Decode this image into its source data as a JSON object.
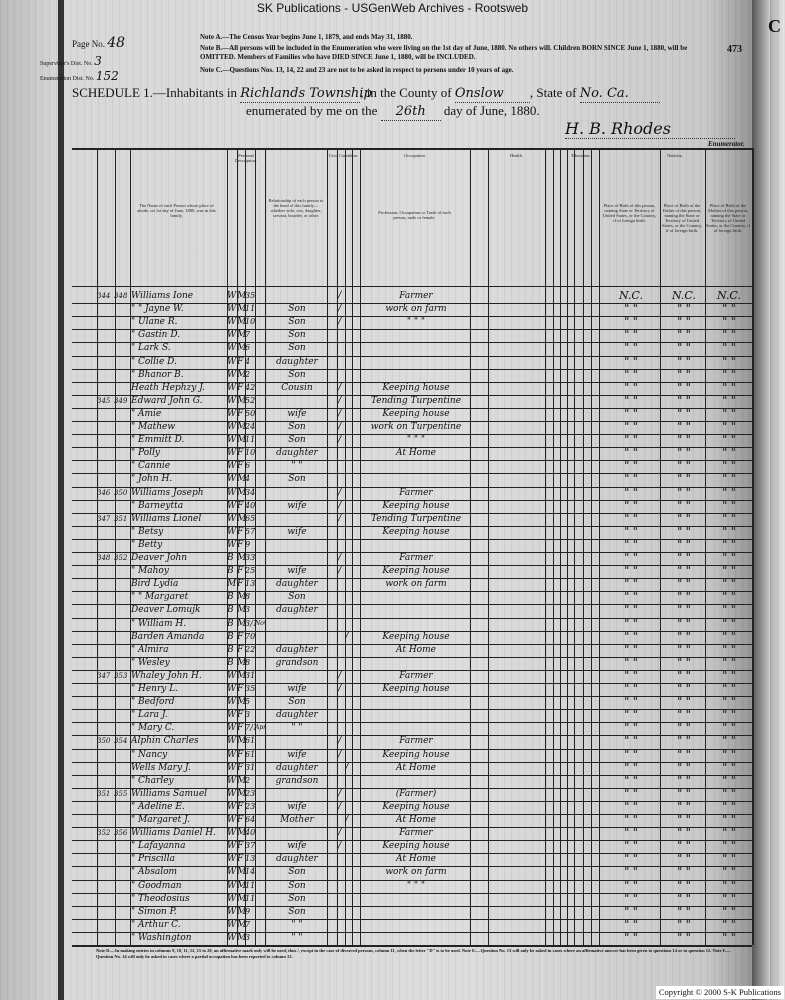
{
  "watermark": "SK Publications - USGenWeb Archives - Rootsweb",
  "header": {
    "page_no_label": "Page No.",
    "page_no": "48",
    "supervisor_label": "Supervisor's Dist. No.",
    "supervisor_no": "3",
    "enumeration_label": "Enumeration Dist. No.",
    "enumeration_no": "152",
    "stamp_number": "473",
    "corner_letter": "C",
    "note_a": "Note A.—The Census Year begins June 1, 1879, and ends May 31, 1880.",
    "note_b": "Note B.—All persons will be included in the Enumeration who were living on the 1st day of June, 1880. No others will. Children BORN SINCE June 1, 1880, will be OMITTED. Members of Families who have DIED SINCE June 1, 1880, will be INCLUDED.",
    "note_c": "Note C.—Questions Nos. 13, 14, 22 and 23 are not to be asked in respect to persons under 10 years of age.",
    "schedule_label": "SCHEDULE 1.—Inhabitants in",
    "township": "Richlands Township",
    "county_label": ", in the County of",
    "county": "Onslow",
    "state_label": ", State of",
    "state": "No. Ca.",
    "enumerated_label": "enumerated by me on the",
    "day": "26th",
    "date_suffix": "day of June, 1880.",
    "enumerator_signature": "H. B. Rhodes",
    "enumerator_label": "Enumerator."
  },
  "column_headers": {
    "personal": "Personal Description.",
    "civil": "Civil Condition.",
    "occupation": "Occupation.",
    "health": "Health.",
    "education": "Education.",
    "nativity": "Nativity.",
    "name": "The Name of each Person whose place of abode, on 1st day of June, 1880, was in this family.",
    "relationship": "Relationship of each person to the head of this family—whether wife, son, daughter, servant, boarder, or other.",
    "profession": "Profession, Occupation or Trade of each person, male or female.",
    "birth_self": "Place of Birth of this person, naming State or Territory of United States, or the Country, if of foreign birth.",
    "birth_father": "Place of Birth of the Father of this person, naming the State or Territory of United States, or the Country, if of foreign birth.",
    "birth_mother": "Place of Birth of the Mother of this person, naming the State or Territory of United States, or the Country, if of foreign birth."
  },
  "rows": [
    {
      "dw": "344",
      "fam": "348",
      "name": "Williams Ione",
      "c": "W",
      "s": "M",
      "a": "35",
      "rel": "",
      "m": "/",
      "occ": "Farmer",
      "bp": "N.C.",
      "fb": "N.C.",
      "mb": "N.C."
    },
    {
      "dw": "",
      "fam": "",
      "name": "\" \" Jayne W.",
      "c": "W",
      "s": "M",
      "a": "11",
      "rel": "Son",
      "m": "/",
      "occ": "work on farm",
      "bp": "\"  \"",
      "fb": "\"  \"",
      "mb": "\"  \""
    },
    {
      "dw": "",
      "fam": "",
      "name": "\" Ulane R.",
      "c": "W",
      "s": "M",
      "a": "10",
      "rel": "Son",
      "m": "/",
      "occ": "\"  \"  \"",
      "bp": "\"  \"",
      "fb": "\"  \"",
      "mb": "\"  \""
    },
    {
      "dw": "",
      "fam": "",
      "name": "\" Gastin D.",
      "c": "W",
      "s": "M",
      "a": "7",
      "rel": "Son",
      "m": "",
      "occ": "",
      "bp": "\"  \"",
      "fb": "\"  \"",
      "mb": "\"  \""
    },
    {
      "dw": "",
      "fam": "",
      "name": "\" Lark S.",
      "c": "W",
      "s": "M",
      "a": "6",
      "rel": "Son",
      "m": "",
      "occ": "",
      "bp": "\"  \"",
      "fb": "\"  \"",
      "mb": "\"  \""
    },
    {
      "dw": "",
      "fam": "",
      "name": "\" Collie D.",
      "c": "W",
      "s": "F",
      "a": "4",
      "rel": "daughter",
      "m": "",
      "occ": "",
      "bp": "\"  \"",
      "fb": "\"  \"",
      "mb": "\"  \""
    },
    {
      "dw": "",
      "fam": "",
      "name": "\" Bhanor B.",
      "c": "W",
      "s": "M",
      "a": "2",
      "rel": "Son",
      "m": "",
      "occ": "",
      "bp": "\"  \"",
      "fb": "\"  \"",
      "mb": "\"  \""
    },
    {
      "dw": "",
      "fam": "",
      "name": "Heath Hephzy J.",
      "c": "W",
      "s": "F",
      "a": "42",
      "rel": "Cousin",
      "m": "/",
      "occ": "Keeping house",
      "bp": "\"  \"",
      "fb": "\"  \"",
      "mb": "\"  \""
    },
    {
      "dw": "345",
      "fam": "349",
      "name": "Edward John G.",
      "c": "W",
      "s": "M",
      "a": "52",
      "rel": "",
      "m": "/",
      "occ": "Tending Turpentine",
      "bp": "\"  \"",
      "fb": "\"  \"",
      "mb": "\"  \""
    },
    {
      "dw": "",
      "fam": "",
      "name": "\" Amie",
      "c": "W",
      "s": "F",
      "a": "50",
      "rel": "wife",
      "m": "/",
      "occ": "Keeping house",
      "bp": "\"  \"",
      "fb": "\"  \"",
      "mb": "\"  \""
    },
    {
      "dw": "",
      "fam": "",
      "name": "\" Mathew",
      "c": "W",
      "s": "M",
      "a": "24",
      "rel": "Son",
      "m": "/",
      "occ": "work on Turpentine",
      "bp": "\"  \"",
      "fb": "\"  \"",
      "mb": "\"  \""
    },
    {
      "dw": "",
      "fam": "",
      "name": "\" Emmitt D.",
      "c": "W",
      "s": "M",
      "a": "11",
      "rel": "Son",
      "m": "/",
      "occ": "\"  \"  \"",
      "bp": "\"  \"",
      "fb": "\"  \"",
      "mb": "\"  \""
    },
    {
      "dw": "",
      "fam": "",
      "name": "\" Polly",
      "c": "W",
      "s": "F",
      "a": "10",
      "rel": "daughter",
      "m": "",
      "occ": "At Home",
      "bp": "\"  \"",
      "fb": "\"  \"",
      "mb": "\"  \""
    },
    {
      "dw": "",
      "fam": "",
      "name": "\" Cannie",
      "c": "W",
      "s": "F",
      "a": "6",
      "rel": "\" \"",
      "m": "",
      "occ": "",
      "bp": "\"  \"",
      "fb": "\"  \"",
      "mb": "\"  \""
    },
    {
      "dw": "",
      "fam": "",
      "name": "\" John H.",
      "c": "W",
      "s": "M",
      "a": "4",
      "rel": "Son",
      "m": "",
      "occ": "",
      "bp": "\"  \"",
      "fb": "\"  \"",
      "mb": "\"  \""
    },
    {
      "dw": "346",
      "fam": "350",
      "name": "Williams Joseph",
      "c": "W",
      "s": "M",
      "a": "34",
      "rel": "",
      "m": "/",
      "occ": "Farmer",
      "bp": "\"  \"",
      "fb": "\"  \"",
      "mb": "\"  \""
    },
    {
      "dw": "",
      "fam": "",
      "name": "\" Barneytta",
      "c": "W",
      "s": "F",
      "a": "40",
      "rel": "wife",
      "m": "/",
      "occ": "Keeping house",
      "bp": "\"  \"",
      "fb": "\"  \"",
      "mb": "\"  \""
    },
    {
      "dw": "347",
      "fam": "351",
      "name": "Williams Lionel",
      "c": "W",
      "s": "M",
      "a": "65",
      "rel": "",
      "m": "/",
      "occ": "Tending Turpentine",
      "bp": "\"  \"",
      "fb": "\"  \"",
      "mb": "\"  \""
    },
    {
      "dw": "",
      "fam": "",
      "name": "\" Betsy",
      "c": "W",
      "s": "F",
      "a": "57",
      "rel": "wife",
      "m": "",
      "occ": "Keeping house",
      "bp": "\"  \"",
      "fb": "\"  \"",
      "mb": "\"  \""
    },
    {
      "dw": "",
      "fam": "",
      "name": "\" Betty",
      "c": "W",
      "s": "F",
      "a": "9",
      "rel": "",
      "m": "",
      "occ": "",
      "bp": "\"  \"",
      "fb": "\"  \"",
      "mb": "\"  \""
    },
    {
      "dw": "348",
      "fam": "352",
      "name": "Deaver John",
      "c": "B",
      "s": "M",
      "a": "33",
      "rel": "",
      "m": "/",
      "occ": "Farmer",
      "bp": "\"  \"",
      "fb": "\"  \"",
      "mb": "\"  \""
    },
    {
      "dw": "",
      "fam": "",
      "name": "\" Mahoy",
      "c": "B",
      "s": "F",
      "a": "25",
      "rel": "wife",
      "m": "/",
      "occ": "Keeping house",
      "bp": "\"  \"",
      "fb": "\"  \"",
      "mb": "\"  \""
    },
    {
      "dw": "",
      "fam": "",
      "name": "Bird Lydia",
      "c": "M",
      "s": "F",
      "a": "13",
      "rel": "daughter",
      "m": "",
      "occ": "work on farm",
      "bp": "\"  \"",
      "fb": "\"  \"",
      "mb": "\"  \""
    },
    {
      "dw": "",
      "fam": "",
      "name": "\" \" Margaret",
      "c": "B",
      "s": "M",
      "a": "8",
      "rel": "Son",
      "m": "",
      "occ": "",
      "bp": "\"  \"",
      "fb": "\"  \"",
      "mb": "\"  \""
    },
    {
      "dw": "",
      "fam": "",
      "name": "Deaver Lomujk",
      "c": "B",
      "s": "M",
      "a": "3",
      "rel": "daughter",
      "m": "",
      "occ": "",
      "bp": "\"  \"",
      "fb": "\"  \"",
      "mb": "\"  \""
    },
    {
      "dw": "",
      "fam": "",
      "name": "\" William H.",
      "c": "B",
      "s": "M",
      "a": "3/12",
      "rel": "",
      "mo": "Nov",
      "m": "",
      "occ": "",
      "bp": "\"  \"",
      "fb": "\"  \"",
      "mb": "\"  \""
    },
    {
      "dw": "",
      "fam": "",
      "name": "Barden Amanda",
      "c": "B",
      "s": "F",
      "a": "70",
      "rel": "",
      "m": "",
      "w": "/",
      "occ": "Keeping house",
      "bp": "\"  \"",
      "fb": "\"  \"",
      "mb": "\"  \""
    },
    {
      "dw": "",
      "fam": "",
      "name": "\" Almira",
      "c": "B",
      "s": "F",
      "a": "22",
      "rel": "daughter",
      "m": "",
      "occ": "At Home",
      "bp": "\"  \"",
      "fb": "\"  \"",
      "mb": "\"  \""
    },
    {
      "dw": "",
      "fam": "",
      "name": "\" Wesley",
      "c": "B",
      "s": "M",
      "a": "8",
      "rel": "grandson",
      "m": "",
      "occ": "",
      "bp": "\"  \"",
      "fb": "\"  \"",
      "mb": "\"  \""
    },
    {
      "dw": "347",
      "fam": "353",
      "name": "Whaley John H.",
      "c": "W",
      "s": "M",
      "a": "31",
      "rel": "",
      "m": "/",
      "occ": "Farmer",
      "bp": "\"  \"",
      "fb": "\"  \"",
      "mb": "\"  \""
    },
    {
      "dw": "",
      "fam": "",
      "name": "\" Henry L.",
      "c": "W",
      "s": "F",
      "a": "35",
      "rel": "wife",
      "m": "/",
      "occ": "Keeping house",
      "bp": "\"  \"",
      "fb": "\"  \"",
      "mb": "\"  \""
    },
    {
      "dw": "",
      "fam": "",
      "name": "\" Bedford",
      "c": "W",
      "s": "M",
      "a": "5",
      "rel": "Son",
      "m": "",
      "occ": "",
      "bp": "\"  \"",
      "fb": "\"  \"",
      "mb": "\"  \""
    },
    {
      "dw": "",
      "fam": "",
      "name": "\" Lara J.",
      "c": "W",
      "s": "F",
      "a": "3",
      "rel": "daughter",
      "m": "",
      "occ": "",
      "bp": "\"  \"",
      "fb": "\"  \"",
      "mb": "\"  \""
    },
    {
      "dw": "",
      "fam": "",
      "name": "\" Mary C.",
      "c": "W",
      "s": "F",
      "a": "7/12",
      "rel": "\" \"",
      "mo": "Apr",
      "m": "",
      "occ": "",
      "bp": "\"  \"",
      "fb": "\"  \"",
      "mb": "\"  \""
    },
    {
      "dw": "350",
      "fam": "354",
      "name": "Alphin Charles",
      "c": "W",
      "s": "M",
      "a": "61",
      "rel": "",
      "m": "/",
      "occ": "Farmer",
      "bp": "\"  \"",
      "fb": "\"  \"",
      "mb": "\"  \""
    },
    {
      "dw": "",
      "fam": "",
      "name": "\" Nancy",
      "c": "W",
      "s": "F",
      "a": "61",
      "rel": "wife",
      "m": "/",
      "occ": "Keeping house",
      "bp": "\"  \"",
      "fb": "\"  \"",
      "mb": "\"  \""
    },
    {
      "dw": "",
      "fam": "",
      "name": "Wells Mary J.",
      "c": "W",
      "s": "F",
      "a": "31",
      "rel": "daughter",
      "m": "",
      "w": "/",
      "occ": "At Home",
      "bp": "\"  \"",
      "fb": "\"  \"",
      "mb": "\"  \""
    },
    {
      "dw": "",
      "fam": "",
      "name": "\" Charley",
      "c": "W",
      "s": "M",
      "a": "2",
      "rel": "grandson",
      "m": "",
      "occ": "",
      "bp": "\"  \"",
      "fb": "\"  \"",
      "mb": "\"  \""
    },
    {
      "dw": "351",
      "fam": "355",
      "name": "Williams Samuel",
      "c": "W",
      "s": "M",
      "a": "23",
      "rel": "",
      "m": "/",
      "occ": "(Farmer)",
      "bp": "\"  \"",
      "fb": "\"  \"",
      "mb": "\"  \""
    },
    {
      "dw": "",
      "fam": "",
      "name": "\" Adeline E.",
      "c": "W",
      "s": "F",
      "a": "23",
      "rel": "wife",
      "m": "/",
      "occ": "Keeping house",
      "bp": "\"  \"",
      "fb": "\"  \"",
      "mb": "\"  \""
    },
    {
      "dw": "",
      "fam": "",
      "name": "\" Margaret J.",
      "c": "W",
      "s": "F",
      "a": "64",
      "rel": "Mother",
      "m": "",
      "w": "/",
      "occ": "At Home",
      "bp": "\"  \"",
      "fb": "\"  \"",
      "mb": "\"  \""
    },
    {
      "dw": "352",
      "fam": "356",
      "name": "Williams Daniel H.",
      "c": "W",
      "s": "M",
      "a": "40",
      "rel": "",
      "m": "/",
      "occ": "Farmer",
      "bp": "\"  \"",
      "fb": "\"  \"",
      "mb": "\"  \""
    },
    {
      "dw": "",
      "fam": "",
      "name": "\" Lafayanna",
      "c": "W",
      "s": "F",
      "a": "37",
      "rel": "wife",
      "m": "/",
      "occ": "Keeping house",
      "bp": "\"  \"",
      "fb": "\"  \"",
      "mb": "\"  \""
    },
    {
      "dw": "",
      "fam": "",
      "name": "\" Priscilla",
      "c": "W",
      "s": "F",
      "a": "13",
      "rel": "daughter",
      "m": "",
      "occ": "At Home",
      "bp": "\"  \"",
      "fb": "\"  \"",
      "mb": "\"  \""
    },
    {
      "dw": "",
      "fam": "",
      "name": "\" Absalom",
      "c": "W",
      "s": "M",
      "a": "14",
      "rel": "Son",
      "m": "",
      "occ": "work on farm",
      "bp": "\"  \"",
      "fb": "\"  \"",
      "mb": "\"  \""
    },
    {
      "dw": "",
      "fam": "",
      "name": "\" Goodman",
      "c": "W",
      "s": "M",
      "a": "11",
      "rel": "Son",
      "m": "",
      "occ": "\"  \"  \"",
      "bp": "\"  \"",
      "fb": "\"  \"",
      "mb": "\"  \""
    },
    {
      "dw": "",
      "fam": "",
      "name": "\" Theodosius",
      "c": "W",
      "s": "M",
      "a": "11",
      "rel": "Son",
      "m": "",
      "occ": "",
      "bp": "\"  \"",
      "fb": "\"  \"",
      "mb": "\"  \""
    },
    {
      "dw": "",
      "fam": "",
      "name": "\" Simon P.",
      "c": "W",
      "s": "M",
      "a": "9",
      "rel": "Son",
      "m": "",
      "occ": "",
      "bp": "\"  \"",
      "fb": "\"  \"",
      "mb": "\"  \""
    },
    {
      "dw": "",
      "fam": "",
      "name": "\" Arthur C.",
      "c": "W",
      "s": "M",
      "a": "7",
      "rel": "\" \"",
      "m": "",
      "occ": "",
      "bp": "\"  \"",
      "fb": "\"  \"",
      "mb": "\"  \""
    },
    {
      "dw": "",
      "fam": "",
      "name": "\" Washington",
      "c": "W",
      "s": "M",
      "a": "3",
      "rel": "\" \"",
      "m": "",
      "occ": "",
      "bp": "\"  \"",
      "fb": "\"  \"",
      "mb": "\"  \""
    }
  ],
  "footer_notes": "Note D.—In making entries in columns 9, 10, 11, 12, 15 to 20, an affirmative mark only will be used, thus /, except in the case of divorced persons, column 11, when the letter \"D\" is to be used. Note E.—Question No. 13 will only be asked in cases where an affirmative answer has been given to questions 14 or to question 12. Note F.—Question No. 14 will only be asked in cases where a partial occupation has been reported to column 13.",
  "copyright": "Copyright © 2000 S-K Publications"
}
